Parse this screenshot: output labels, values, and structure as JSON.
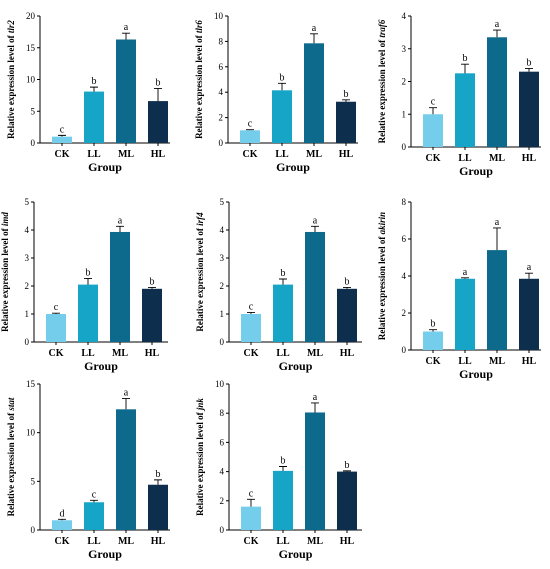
{
  "colors": {
    "CK": "#74CDEB",
    "LL": "#16A5C6",
    "ML": "#0E6A8C",
    "HL": "#0D2F4D"
  },
  "chart_data": [
    {
      "type": "bar",
      "gene": "tlr2",
      "ylabel_prefix": "Relative expression level of ",
      "xlabel": "Group",
      "categories": [
        "CK",
        "LL",
        "ML",
        "HL"
      ],
      "values": [
        1.0,
        8.1,
        16.3,
        6.6
      ],
      "errors": [
        0.2,
        0.7,
        1.0,
        2.0
      ],
      "letters": [
        "c",
        "b",
        "a",
        "b"
      ],
      "ylim": [
        0,
        20
      ],
      "yticks": [
        0,
        5,
        10,
        15,
        20
      ]
    },
    {
      "type": "bar",
      "gene": "tlr6",
      "ylabel_prefix": "Relative expression level of ",
      "xlabel": "Group",
      "categories": [
        "CK",
        "LL",
        "ML",
        "HL"
      ],
      "values": [
        1.0,
        4.15,
        7.85,
        3.25
      ],
      "errors": [
        0.05,
        0.55,
        0.75,
        0.15
      ],
      "letters": [
        "c",
        "b",
        "a",
        "b"
      ],
      "ylim": [
        0,
        10
      ],
      "yticks": [
        0,
        2,
        4,
        6,
        8,
        10
      ]
    },
    {
      "type": "bar",
      "gene": "traf6",
      "ylabel_prefix": "Relative expression level of ",
      "xlabel": "Group",
      "categories": [
        "CK",
        "LL",
        "ML",
        "HL"
      ],
      "values": [
        1.0,
        2.25,
        3.35,
        2.3
      ],
      "errors": [
        0.2,
        0.28,
        0.22,
        0.1
      ],
      "letters": [
        "c",
        "b",
        "a",
        "b"
      ],
      "ylim": [
        0,
        4
      ],
      "yticks": [
        0,
        1,
        2,
        3,
        4
      ]
    },
    {
      "type": "bar",
      "gene": "imd",
      "ylabel_prefix": "Relative expression level of ",
      "xlabel": "Group",
      "categories": [
        "CK",
        "LL",
        "ML",
        "HL"
      ],
      "values": [
        1.0,
        2.05,
        3.93,
        1.9
      ],
      "errors": [
        0.03,
        0.22,
        0.2,
        0.05
      ],
      "letters": [
        "c",
        "b",
        "a",
        "b"
      ],
      "ylim": [
        0,
        5
      ],
      "yticks": [
        0,
        1,
        2,
        3,
        4,
        5
      ]
    },
    {
      "type": "bar",
      "gene": "irf4",
      "ylabel_prefix": "Relative expression level of ",
      "xlabel": "Group",
      "categories": [
        "CK",
        "LL",
        "ML",
        "HL"
      ],
      "values": [
        1.0,
        2.05,
        3.93,
        1.9
      ],
      "errors": [
        0.05,
        0.2,
        0.2,
        0.05
      ],
      "letters": [
        "c",
        "b",
        "a",
        "b"
      ],
      "ylim": [
        0,
        5
      ],
      "yticks": [
        0,
        1,
        2,
        3,
        4,
        5
      ]
    },
    {
      "type": "bar",
      "gene": "akirin",
      "ylabel_prefix": "Relative expression level of ",
      "xlabel": "Group",
      "categories": [
        "CK",
        "LL",
        "ML",
        "HL"
      ],
      "values": [
        1.0,
        3.85,
        5.4,
        3.85
      ],
      "errors": [
        0.1,
        0.05,
        1.2,
        0.3
      ],
      "letters": [
        "b",
        "a",
        "a",
        "a"
      ],
      "ylim": [
        0,
        8
      ],
      "yticks": [
        0,
        2,
        4,
        6,
        8
      ]
    },
    {
      "type": "bar",
      "gene": "stat",
      "ylabel_prefix": "Relative expression level of ",
      "xlabel": "Group",
      "categories": [
        "CK",
        "LL",
        "ML",
        "HL"
      ],
      "values": [
        1.0,
        2.85,
        12.4,
        4.65
      ],
      "errors": [
        0.1,
        0.2,
        1.1,
        0.5
      ],
      "letters": [
        "d",
        "c",
        "a",
        "b"
      ],
      "ylim": [
        0,
        15
      ],
      "yticks": [
        0,
        5,
        10,
        15
      ]
    },
    {
      "type": "bar",
      "gene": "jnk",
      "ylabel_prefix": "Relative expression level of ",
      "xlabel": "Group",
      "categories": [
        "CK",
        "LL",
        "ML",
        "HL"
      ],
      "values": [
        1.6,
        4.05,
        8.05,
        4.0
      ],
      "errors": [
        0.5,
        0.3,
        0.65,
        0.05
      ],
      "letters": [
        "c",
        "b",
        "a",
        "b"
      ],
      "ylim": [
        0,
        10
      ],
      "yticks": [
        0,
        2,
        4,
        6,
        8,
        10
      ]
    }
  ]
}
